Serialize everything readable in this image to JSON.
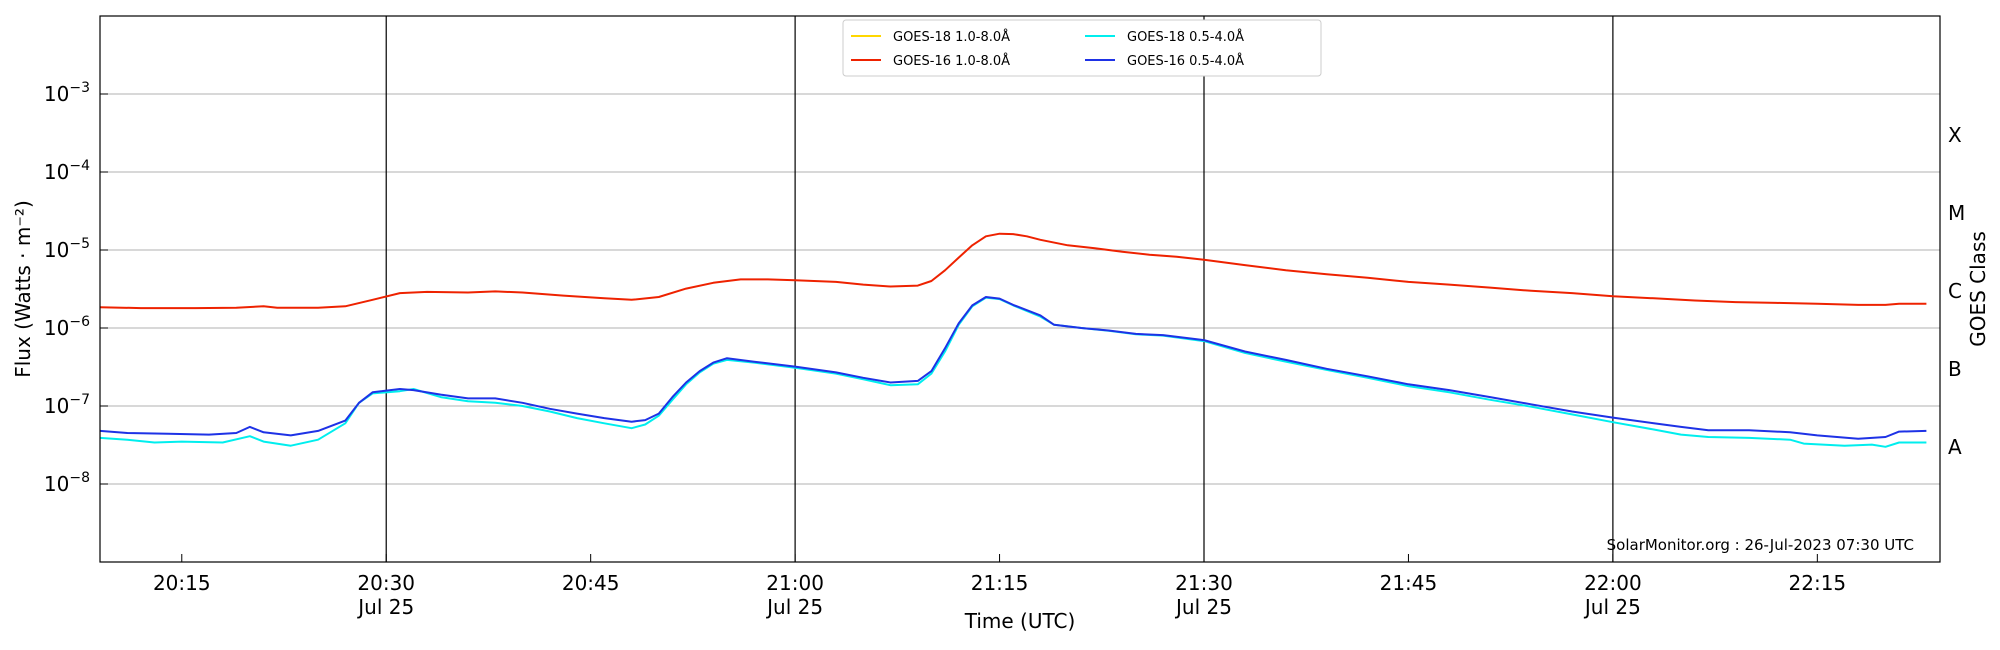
{
  "chart_data": {
    "type": "line",
    "ylabel": "Flux (Watts · m⁻²)",
    "xlabel": "Time (UTC)",
    "y2label": "GOES Class",
    "yscale": "log",
    "ylim": [
      1e-09,
      0.01
    ],
    "xlim": [
      "20:09",
      "22:24"
    ],
    "yticks": [
      {
        "value": 1e-08,
        "exp": "-8"
      },
      {
        "value": 1e-07,
        "exp": "-7"
      },
      {
        "value": 1e-06,
        "exp": "-6"
      },
      {
        "value": 1e-05,
        "exp": "-5"
      },
      {
        "value": 0.0001,
        "exp": "-4"
      },
      {
        "value": 0.001,
        "exp": "-3"
      }
    ],
    "ytick_base": "10",
    "xticks": [
      {
        "time": "20:15",
        "label": "20:15",
        "date": ""
      },
      {
        "time": "20:30",
        "label": "20:30",
        "date": "Jul 25"
      },
      {
        "time": "20:45",
        "label": "20:45",
        "date": ""
      },
      {
        "time": "21:00",
        "label": "21:00",
        "date": "Jul 25"
      },
      {
        "time": "21:15",
        "label": "21:15",
        "date": ""
      },
      {
        "time": "21:30",
        "label": "21:30",
        "date": "Jul 25"
      },
      {
        "time": "21:45",
        "label": "21:45",
        "date": ""
      },
      {
        "time": "22:00",
        "label": "22:00",
        "date": "Jul 25"
      },
      {
        "time": "22:15",
        "label": "22:15",
        "date": ""
      }
    ],
    "vlines": [
      "20:30",
      "21:00",
      "21:30",
      "22:00"
    ],
    "goes_classes": [
      {
        "label": "A",
        "value": 3e-08
      },
      {
        "label": "B",
        "value": 3e-07
      },
      {
        "label": "C",
        "value": 3e-06
      },
      {
        "label": "M",
        "value": 3e-05
      },
      {
        "label": "X",
        "value": 0.0003
      }
    ],
    "grid": true,
    "legend_position": "top-center",
    "credit": "SolarMonitor.org : 26-Jul-2023 07:30 UTC",
    "series": [
      {
        "name": "GOES-18 1.0-8.0Å",
        "color": "#ffd700",
        "points": []
      },
      {
        "name": "GOES-16 1.0-8.0Å",
        "color": "#ee2200",
        "points": [
          [
            "20:09",
            1.85e-06
          ],
          [
            "20:12",
            1.8e-06
          ],
          [
            "20:16",
            1.8e-06
          ],
          [
            "20:19",
            1.82e-06
          ],
          [
            "20:21",
            1.9e-06
          ],
          [
            "20:22",
            1.82e-06
          ],
          [
            "20:25",
            1.82e-06
          ],
          [
            "20:27",
            1.9e-06
          ],
          [
            "20:29",
            2.3e-06
          ],
          [
            "20:31",
            2.8e-06
          ],
          [
            "20:33",
            2.9e-06
          ],
          [
            "20:36",
            2.85e-06
          ],
          [
            "20:38",
            2.95e-06
          ],
          [
            "20:40",
            2.85e-06
          ],
          [
            "20:43",
            2.6e-06
          ],
          [
            "20:46",
            2.4e-06
          ],
          [
            "20:48",
            2.3e-06
          ],
          [
            "20:50",
            2.5e-06
          ],
          [
            "20:52",
            3.2e-06
          ],
          [
            "20:54",
            3.8e-06
          ],
          [
            "20:56",
            4.2e-06
          ],
          [
            "20:58",
            4.2e-06
          ],
          [
            "21:00",
            4.1e-06
          ],
          [
            "21:03",
            3.9e-06
          ],
          [
            "21:05",
            3.6e-06
          ],
          [
            "21:07",
            3.4e-06
          ],
          [
            "21:09",
            3.5e-06
          ],
          [
            "21:10",
            4e-06
          ],
          [
            "21:11",
            5.5e-06
          ],
          [
            "21:12",
            8e-06
          ],
          [
            "21:13",
            1.15e-05
          ],
          [
            "21:14",
            1.5e-05
          ],
          [
            "21:15",
            1.62e-05
          ],
          [
            "21:16",
            1.6e-05
          ],
          [
            "21:17",
            1.5e-05
          ],
          [
            "21:18",
            1.35e-05
          ],
          [
            "21:20",
            1.15e-05
          ],
          [
            "21:22",
            1.05e-05
          ],
          [
            "21:24",
            9.5e-06
          ],
          [
            "21:26",
            8.7e-06
          ],
          [
            "21:28",
            8.2e-06
          ],
          [
            "21:30",
            7.5e-06
          ],
          [
            "21:33",
            6.4e-06
          ],
          [
            "21:36",
            5.5e-06
          ],
          [
            "21:39",
            4.9e-06
          ],
          [
            "21:42",
            4.4e-06
          ],
          [
            "21:45",
            3.9e-06
          ],
          [
            "21:48",
            3.6e-06
          ],
          [
            "21:51",
            3.3e-06
          ],
          [
            "21:54",
            3e-06
          ],
          [
            "21:57",
            2.8e-06
          ],
          [
            "22:00",
            2.55e-06
          ],
          [
            "22:03",
            2.4e-06
          ],
          [
            "22:06",
            2.25e-06
          ],
          [
            "22:09",
            2.15e-06
          ],
          [
            "22:12",
            2.1e-06
          ],
          [
            "22:15",
            2.05e-06
          ],
          [
            "22:18",
            1.98e-06
          ],
          [
            "22:20",
            1.98e-06
          ],
          [
            "22:21",
            2.05e-06
          ],
          [
            "22:23",
            2.05e-06
          ]
        ]
      },
      {
        "name": "GOES-18 0.5-4.0Å",
        "color": "#00eeee",
        "points": [
          [
            "20:09",
            3.9e-08
          ],
          [
            "20:11",
            3.7e-08
          ],
          [
            "20:13",
            3.4e-08
          ],
          [
            "20:15",
            3.5e-08
          ],
          [
            "20:18",
            3.4e-08
          ],
          [
            "20:20",
            4.1e-08
          ],
          [
            "20:21",
            3.5e-08
          ],
          [
            "20:23",
            3.1e-08
          ],
          [
            "20:25",
            3.7e-08
          ],
          [
            "20:27",
            6e-08
          ],
          [
            "20:28",
            1.1e-07
          ],
          [
            "20:29",
            1.45e-07
          ],
          [
            "20:31",
            1.55e-07
          ],
          [
            "20:32",
            1.65e-07
          ],
          [
            "20:34",
            1.3e-07
          ],
          [
            "20:36",
            1.15e-07
          ],
          [
            "20:38",
            1.1e-07
          ],
          [
            "20:40",
            1e-07
          ],
          [
            "20:42",
            8.5e-08
          ],
          [
            "20:44",
            7e-08
          ],
          [
            "20:46",
            6e-08
          ],
          [
            "20:48",
            5.2e-08
          ],
          [
            "20:49",
            5.8e-08
          ],
          [
            "20:50",
            7.5e-08
          ],
          [
            "20:51",
            1.2e-07
          ],
          [
            "20:52",
            1.9e-07
          ],
          [
            "20:53",
            2.7e-07
          ],
          [
            "20:54",
            3.5e-07
          ],
          [
            "20:55",
            3.9e-07
          ],
          [
            "20:57",
            3.6e-07
          ],
          [
            "21:00",
            3.1e-07
          ],
          [
            "21:03",
            2.6e-07
          ],
          [
            "21:05",
            2.2e-07
          ],
          [
            "21:07",
            1.85e-07
          ],
          [
            "21:09",
            1.9e-07
          ],
          [
            "21:10",
            2.6e-07
          ],
          [
            "21:11",
            5e-07
          ],
          [
            "21:12",
            1.1e-06
          ],
          [
            "21:13",
            1.9e-06
          ],
          [
            "21:14",
            2.45e-06
          ],
          [
            "21:15",
            2.35e-06
          ],
          [
            "21:16",
            1.95e-06
          ],
          [
            "21:18",
            1.4e-06
          ],
          [
            "21:19",
            1.1e-06
          ],
          [
            "21:21",
            1e-06
          ],
          [
            "21:23",
            9.2e-07
          ],
          [
            "21:25",
            8.3e-07
          ],
          [
            "21:27",
            8e-07
          ],
          [
            "21:30",
            6.8e-07
          ],
          [
            "21:33",
            4.8e-07
          ],
          [
            "21:36",
            3.7e-07
          ],
          [
            "21:39",
            2.9e-07
          ],
          [
            "21:42",
            2.3e-07
          ],
          [
            "21:45",
            1.8e-07
          ],
          [
            "21:48",
            1.5e-07
          ],
          [
            "21:51",
            1.2e-07
          ],
          [
            "21:54",
            9.8e-08
          ],
          [
            "21:57",
            7.8e-08
          ],
          [
            "22:00",
            6.2e-08
          ],
          [
            "22:03",
            5e-08
          ],
          [
            "22:05",
            4.3e-08
          ],
          [
            "22:07",
            4e-08
          ],
          [
            "22:10",
            3.9e-08
          ],
          [
            "22:13",
            3.7e-08
          ],
          [
            "22:14",
            3.3e-08
          ],
          [
            "22:17",
            3.1e-08
          ],
          [
            "22:19",
            3.2e-08
          ],
          [
            "22:20",
            3e-08
          ],
          [
            "22:21",
            3.4e-08
          ],
          [
            "22:23",
            3.4e-08
          ]
        ]
      },
      {
        "name": "GOES-16 0.5-4.0Å",
        "color": "#1e32e6",
        "points": [
          [
            "20:09",
            4.8e-08
          ],
          [
            "20:11",
            4.5e-08
          ],
          [
            "20:14",
            4.4e-08
          ],
          [
            "20:17",
            4.3e-08
          ],
          [
            "20:19",
            4.5e-08
          ],
          [
            "20:20",
            5.4e-08
          ],
          [
            "20:21",
            4.6e-08
          ],
          [
            "20:23",
            4.2e-08
          ],
          [
            "20:25",
            4.8e-08
          ],
          [
            "20:27",
            6.5e-08
          ],
          [
            "20:28",
            1.1e-07
          ],
          [
            "20:29",
            1.5e-07
          ],
          [
            "20:31",
            1.65e-07
          ],
          [
            "20:32",
            1.6e-07
          ],
          [
            "20:34",
            1.4e-07
          ],
          [
            "20:36",
            1.25e-07
          ],
          [
            "20:38",
            1.25e-07
          ],
          [
            "20:40",
            1.1e-07
          ],
          [
            "20:42",
            9.2e-08
          ],
          [
            "20:44",
            8e-08
          ],
          [
            "20:46",
            7e-08
          ],
          [
            "20:48",
            6.3e-08
          ],
          [
            "20:49",
            6.6e-08
          ],
          [
            "20:50",
            8e-08
          ],
          [
            "20:51",
            1.3e-07
          ],
          [
            "20:52",
            2e-07
          ],
          [
            "20:53",
            2.8e-07
          ],
          [
            "20:54",
            3.6e-07
          ],
          [
            "20:55",
            4.1e-07
          ],
          [
            "20:57",
            3.7e-07
          ],
          [
            "21:00",
            3.2e-07
          ],
          [
            "21:03",
            2.7e-07
          ],
          [
            "21:05",
            2.3e-07
          ],
          [
            "21:07",
            2e-07
          ],
          [
            "21:09",
            2.1e-07
          ],
          [
            "21:10",
            2.8e-07
          ],
          [
            "21:11",
            5.5e-07
          ],
          [
            "21:12",
            1.15e-06
          ],
          [
            "21:13",
            1.95e-06
          ],
          [
            "21:14",
            2.5e-06
          ],
          [
            "21:15",
            2.38e-06
          ],
          [
            "21:16",
            1.98e-06
          ],
          [
            "21:18",
            1.45e-06
          ],
          [
            "21:19",
            1.1e-06
          ],
          [
            "21:21",
            1e-06
          ],
          [
            "21:23",
            9.3e-07
          ],
          [
            "21:25",
            8.4e-07
          ],
          [
            "21:27",
            8.1e-07
          ],
          [
            "21:30",
            7e-07
          ],
          [
            "21:33",
            5e-07
          ],
          [
            "21:36",
            3.9e-07
          ],
          [
            "21:39",
            3e-07
          ],
          [
            "21:42",
            2.4e-07
          ],
          [
            "21:45",
            1.9e-07
          ],
          [
            "21:48",
            1.6e-07
          ],
          [
            "21:51",
            1.3e-07
          ],
          [
            "21:54",
            1.05e-07
          ],
          [
            "21:57",
            8.5e-08
          ],
          [
            "22:00",
            7.1e-08
          ],
          [
            "22:03",
            6e-08
          ],
          [
            "22:05",
            5.4e-08
          ],
          [
            "22:07",
            4.9e-08
          ],
          [
            "22:10",
            4.9e-08
          ],
          [
            "22:13",
            4.6e-08
          ],
          [
            "22:15",
            4.2e-08
          ],
          [
            "22:18",
            3.8e-08
          ],
          [
            "22:20",
            4e-08
          ],
          [
            "22:21",
            4.7e-08
          ],
          [
            "22:23",
            4.8e-08
          ]
        ]
      }
    ]
  }
}
